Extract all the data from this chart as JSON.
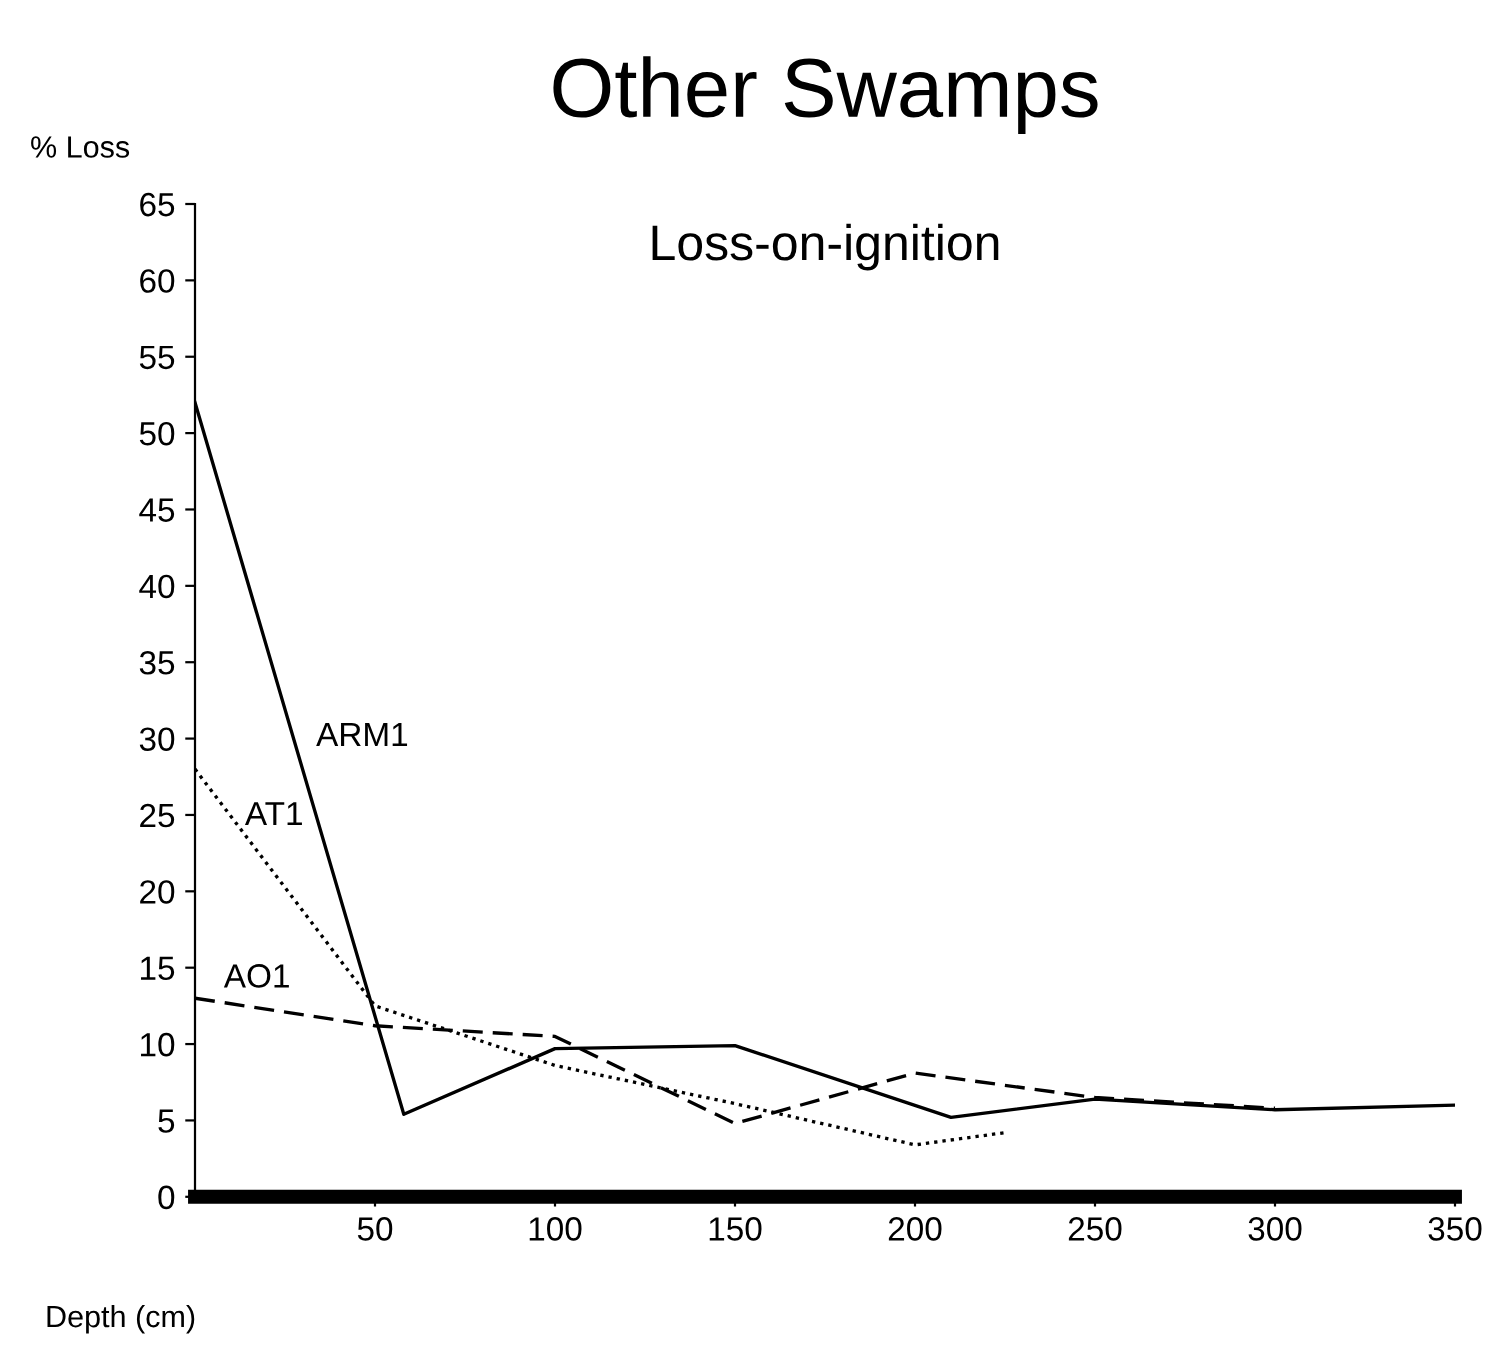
{
  "chart_data": {
    "type": "line",
    "title": "Other Swamps",
    "subtitle": "Loss-on-ignition",
    "xlabel": "Depth (cm)",
    "ylabel": "% Loss",
    "xlim": [
      0,
      350
    ],
    "xticks": [
      50,
      100,
      150,
      200,
      250,
      300,
      350
    ],
    "ylim": [
      0,
      65
    ],
    "yticks": [
      0,
      5,
      10,
      15,
      20,
      25,
      30,
      35,
      40,
      45,
      50,
      55,
      60,
      65
    ],
    "grid": false,
    "legend": false,
    "marker": "none",
    "series": [
      {
        "name": "ARM1",
        "color": "#000000",
        "line_style": "solid",
        "x": [
          0,
          58,
          100,
          150,
          210,
          250,
          300,
          350
        ],
        "values": [
          52,
          5.4,
          9.7,
          9.9,
          5.2,
          6.4,
          5.7,
          6.0
        ]
      },
      {
        "name": "AT1",
        "color": "#000000",
        "line_style": "dotted",
        "x": [
          0,
          50,
          100,
          150,
          200,
          225
        ],
        "values": [
          28,
          12.5,
          8.6,
          6.1,
          3.4,
          4.2
        ]
      },
      {
        "name": "AO1",
        "color": "#000000",
        "line_style": "dashed",
        "x": [
          0,
          50,
          100,
          150,
          200,
          250,
          300
        ],
        "values": [
          13,
          11.2,
          10.5,
          4.8,
          8.1,
          6.5,
          5.8
        ]
      }
    ]
  }
}
